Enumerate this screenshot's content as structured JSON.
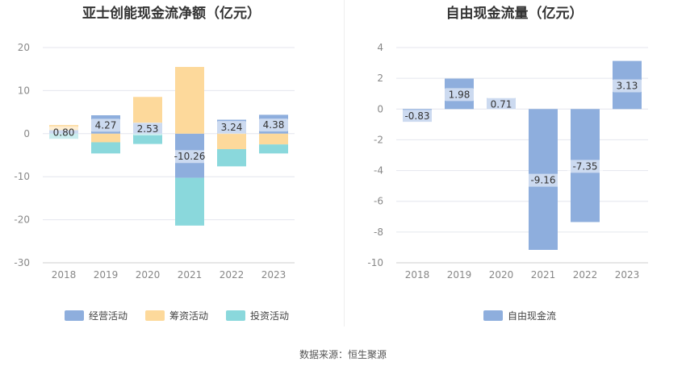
{
  "source": "数据来源：恒生聚源",
  "chart_data": [
    {
      "type": "bar",
      "stacked": true,
      "title": "亚士创能现金流净额（亿元）",
      "categories": [
        "2018",
        "2019",
        "2020",
        "2021",
        "2022",
        "2023"
      ],
      "ylim": [
        -30,
        20
      ],
      "yticks": [
        20,
        10,
        0,
        -10,
        -20,
        -30
      ],
      "grid": true,
      "legend_position": "bottom",
      "series": [
        {
          "name": "经营活动",
          "color": "#8eaedd",
          "values": [
            0.8,
            4.27,
            2.53,
            -10.26,
            3.24,
            4.38
          ],
          "labels": [
            "0.80",
            "4.27",
            "2.53",
            "-10.26",
            "3.24",
            "4.38"
          ]
        },
        {
          "name": "筹资活动",
          "color": "#fdd99b",
          "values": [
            1.2,
            -2.0,
            6.0,
            15.5,
            -3.6,
            -2.5
          ]
        },
        {
          "name": "投资活动",
          "color": "#8ad8dc",
          "values": [
            -1.2,
            -2.6,
            -2.4,
            -11.1,
            -4.0,
            -2.1
          ]
        }
      ]
    },
    {
      "type": "bar",
      "title": "自由现金流量（亿元）",
      "categories": [
        "2018",
        "2019",
        "2020",
        "2021",
        "2022",
        "2023"
      ],
      "ylim": [
        -10,
        4
      ],
      "yticks": [
        4,
        2,
        0,
        -2,
        -4,
        -6,
        -8,
        -10
      ],
      "grid": true,
      "legend_position": "bottom",
      "series": [
        {
          "name": "自由现金流",
          "color": "#8eaedd",
          "values": [
            -0.83,
            1.98,
            0.71,
            -9.16,
            -7.35,
            3.13
          ],
          "labels": [
            "-0.83",
            "1.98",
            "0.71",
            "-9.16",
            "-7.35",
            "3.13"
          ]
        }
      ]
    }
  ]
}
